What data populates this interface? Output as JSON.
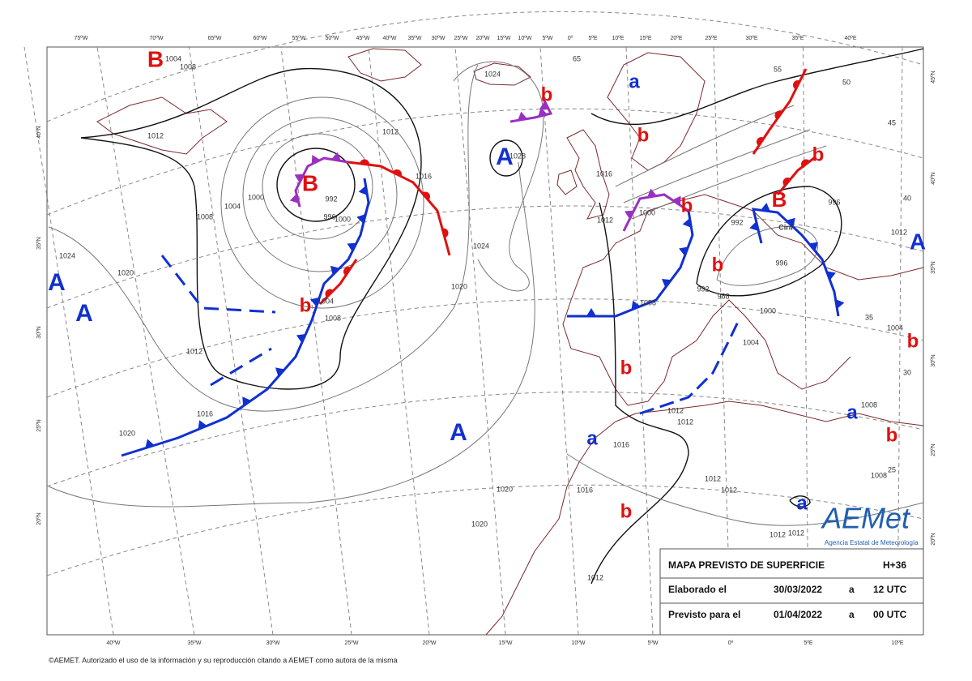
{
  "map": {
    "top_axis": [
      "75ºW",
      "70ºW",
      "65ºW",
      "60ºW",
      "55ºW",
      "50ºW",
      "45ºW",
      "40ºW",
      "35ºW",
      "30ºW",
      "25ºW",
      "20ºW",
      "15ºW",
      "10ºW",
      "5ºW",
      "0º",
      "5ºE",
      "10ºE",
      "15ºE",
      "20ºE",
      "25ºE",
      "30ºE",
      "35ºE",
      "40ºE"
    ],
    "bottom_axis": [
      "40ºW",
      "35ºW",
      "30ºW",
      "25ºW",
      "20ºW",
      "15ºW",
      "10ºW",
      "5ºW",
      "0º",
      "5ºE",
      "10ºE"
    ],
    "left_axis": [
      "40ºN",
      "35ºN",
      "30ºN",
      "25ºN",
      "20ºN"
    ],
    "right_axis": [
      "45ºN",
      "40ºN",
      "35ºN",
      "30ºN",
      "25ºN",
      "20ºN"
    ],
    "centers": [
      "B",
      "B",
      "A",
      "A",
      "A",
      "A",
      "A",
      "B",
      "a",
      "a",
      "a",
      "a",
      "b",
      "b",
      "b",
      "b",
      "b",
      "b",
      "b",
      "b",
      "b",
      "b"
    ],
    "isobar_labels": [
      "1004",
      "1008",
      "1012",
      "1012",
      "1016",
      "1000",
      "1004",
      "1008",
      "996",
      "1000",
      "992",
      "1024",
      "1020",
      "1004",
      "1008",
      "1012",
      "1016",
      "1020",
      "1020",
      "1024",
      "1024",
      "1028",
      "1016",
      "1012",
      "1000",
      "992",
      "996",
      "996",
      "992",
      "988",
      "1000",
      "1004",
      "1008",
      "1012",
      "1012",
      "1016",
      "1016",
      "1020",
      "1020",
      "1012",
      "1012",
      "1012",
      "1012",
      "1012",
      "1008",
      "1008",
      "1012",
      "1004",
      "Ciril",
      "65",
      "55",
      "50",
      "45",
      "40",
      "35",
      "30",
      "25"
    ],
    "info_box": {
      "title": "MAPA PREVISTO DE SUPERFICIE",
      "step": "H+36",
      "rows": [
        [
          "Elaborado el",
          "30/03/2022",
          "a",
          "12 UTC"
        ],
        [
          "Previsto para el",
          "01/04/2022",
          "a",
          "00 UTC"
        ]
      ]
    },
    "logo": {
      "name": "AEMet",
      "subtitle": "Agencia Estatal de Meteorología"
    },
    "footer": "©AEMET. Autorizado el uso de la información y su reproducción citando a AEMET como autora de la misma"
  }
}
